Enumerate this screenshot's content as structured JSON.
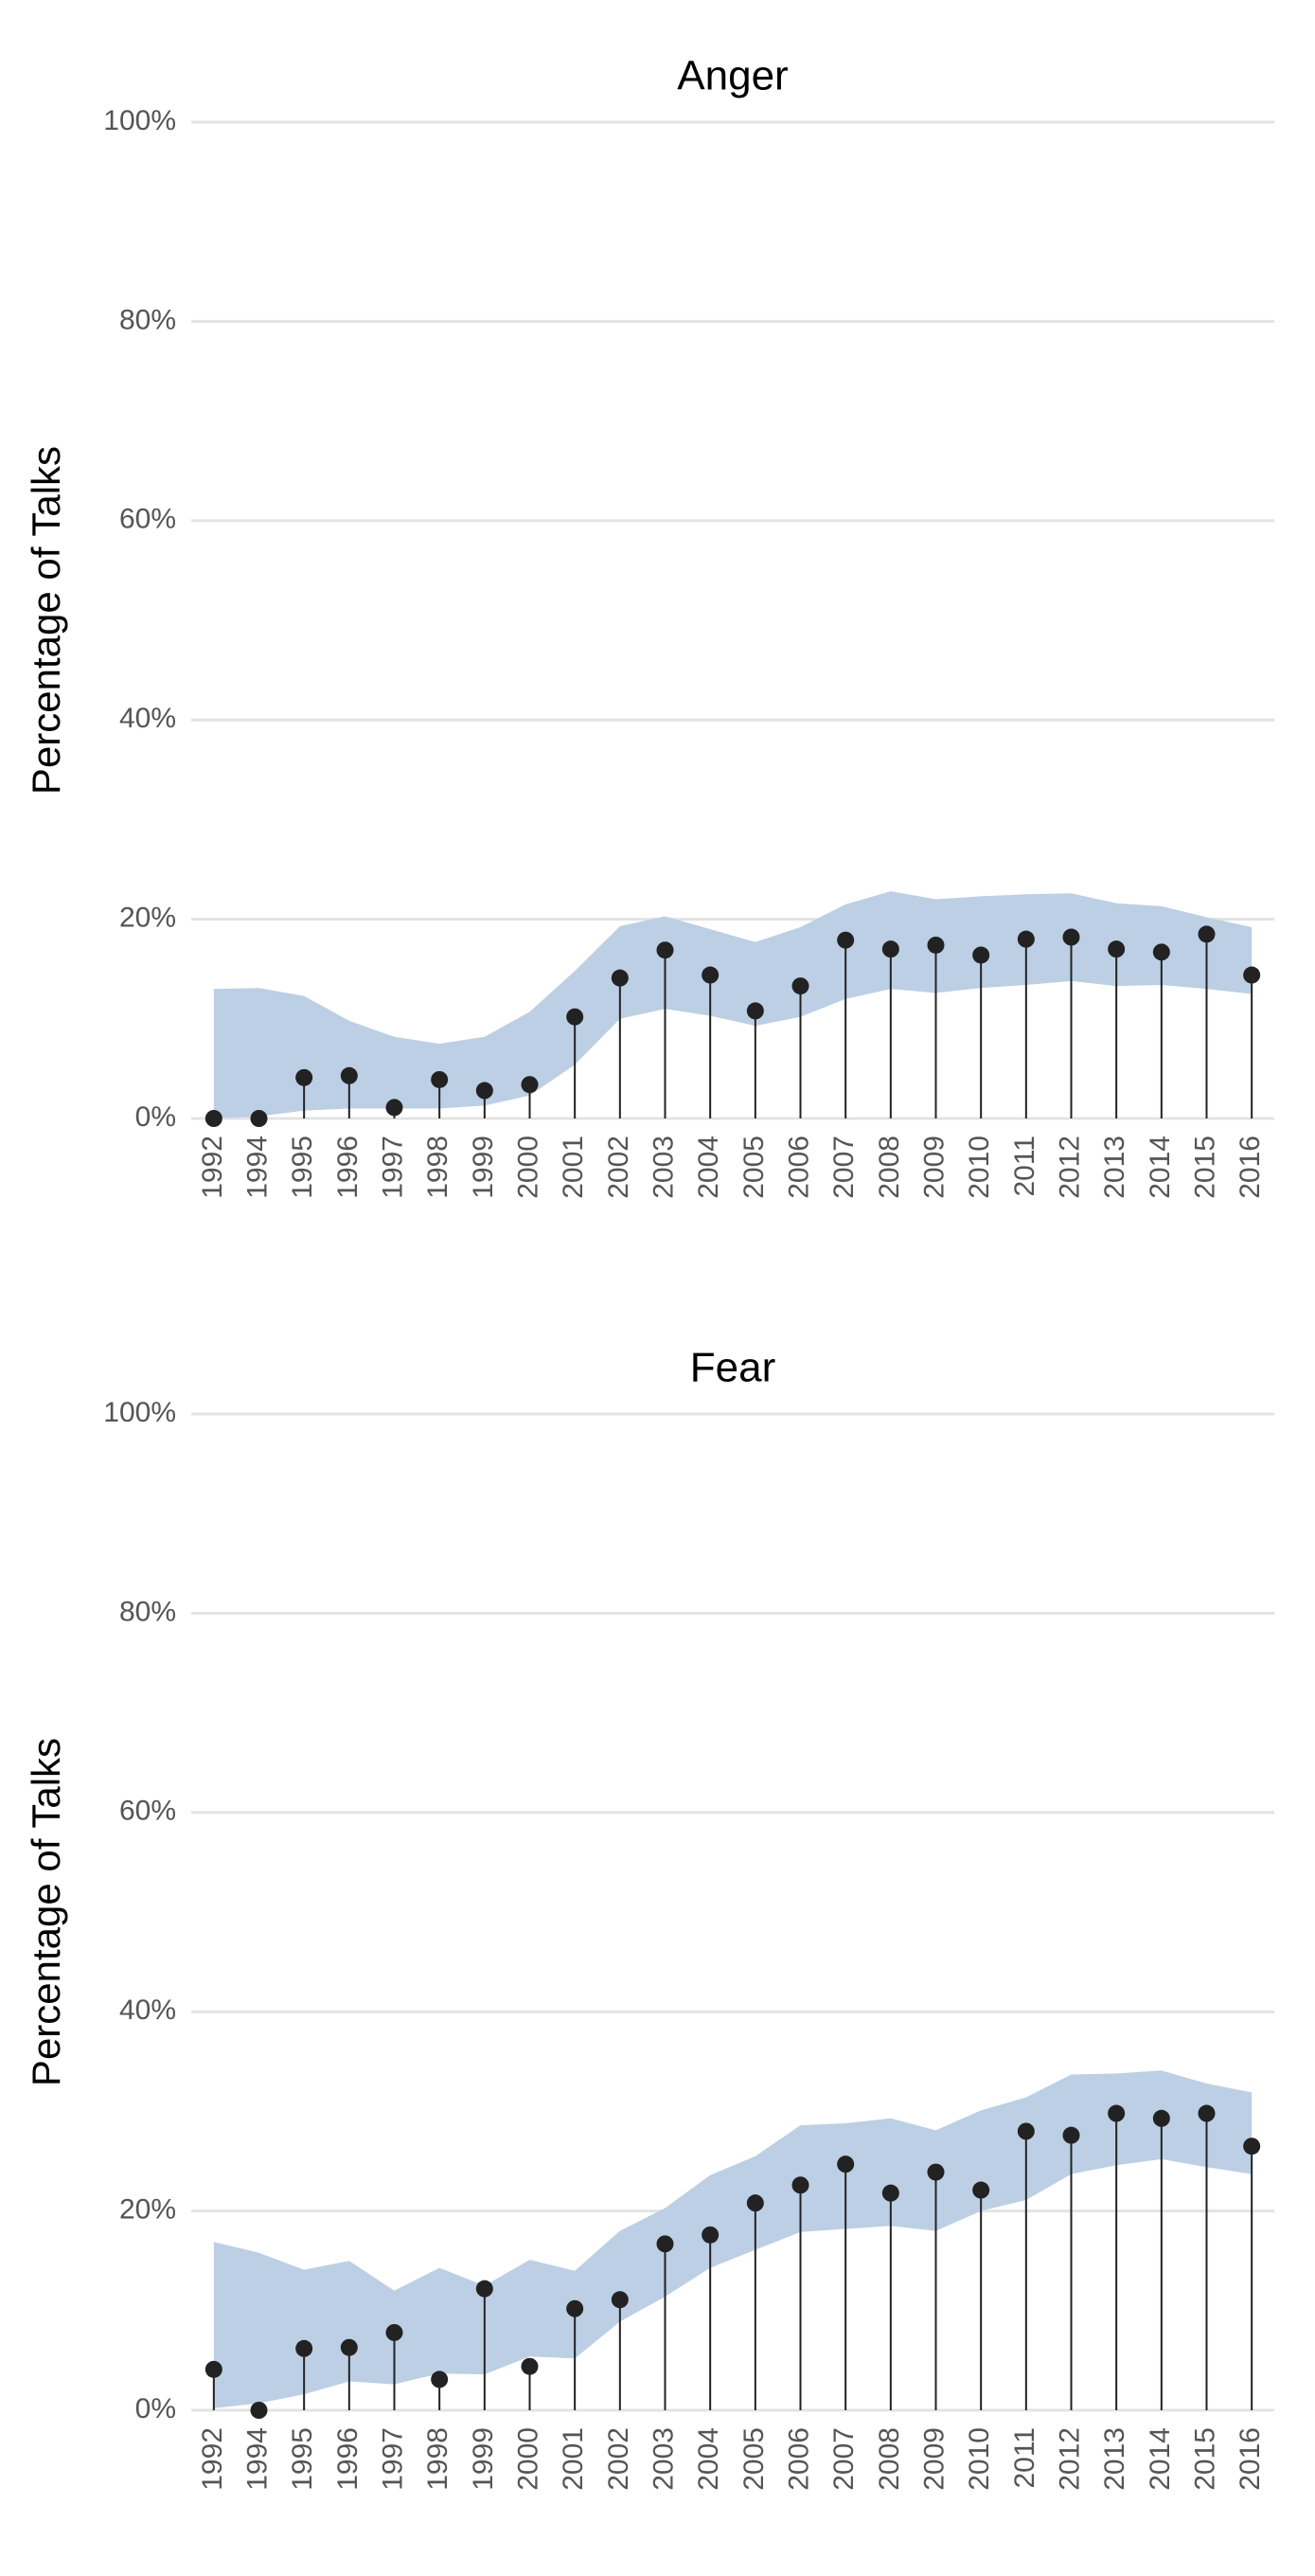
{
  "chart_data": [
    {
      "type": "lollipop-band",
      "title": "Anger",
      "y_label": "Percentage of Talks",
      "categories": [
        "1992",
        "1994",
        "1995",
        "1996",
        "1997",
        "1998",
        "1999",
        "2000",
        "2001",
        "2002",
        "2003",
        "2004",
        "2005",
        "2006",
        "2007",
        "2008",
        "2009",
        "2010",
        "2011",
        "2012",
        "2013",
        "2014",
        "2015",
        "2016"
      ],
      "values": [
        0,
        0,
        4.1,
        4.3,
        1.1,
        3.9,
        2.8,
        3.4,
        10.2,
        14.1,
        16.9,
        14.4,
        10.8,
        13.3,
        17.9,
        17.0,
        17.4,
        16.4,
        18.0,
        18.2,
        17.0,
        16.7,
        18.5,
        14.4
      ],
      "band_lower": [
        0,
        0.2,
        0.8,
        1.0,
        1.0,
        1.0,
        1.3,
        2.3,
        5.4,
        10.0,
        11.0,
        10.3,
        9.3,
        10.2,
        12.0,
        13.0,
        12.6,
        13.1,
        13.4,
        13.8,
        13.3,
        13.4,
        13.0,
        12.5
      ],
      "band_upper": [
        13.0,
        13.1,
        12.3,
        9.8,
        8.2,
        7.5,
        8.2,
        10.7,
        14.8,
        19.3,
        20.3,
        19.0,
        17.7,
        19.2,
        21.5,
        22.8,
        22.0,
        22.3,
        22.5,
        22.6,
        21.6,
        21.3,
        20.2,
        19.2
      ],
      "color": "#222222",
      "band_color": "#bccfe4",
      "ylim": [
        0,
        100
      ],
      "yticks": [
        {
          "value": 0,
          "label": "0%"
        },
        {
          "value": 20,
          "label": "20%"
        },
        {
          "value": 40,
          "label": "40%"
        },
        {
          "value": 60,
          "label": "60%"
        },
        {
          "value": 80,
          "label": "80%"
        },
        {
          "value": 100,
          "label": "100%"
        }
      ],
      "grid": true
    },
    {
      "type": "lollipop-band",
      "title": "Fear",
      "y_label": "Percentage of Talks",
      "categories": [
        "1992",
        "1994",
        "1995",
        "1996",
        "1997",
        "1998",
        "1999",
        "2000",
        "2001",
        "2002",
        "2003",
        "2004",
        "2005",
        "2006",
        "2007",
        "2008",
        "2009",
        "2010",
        "2011",
        "2012",
        "2013",
        "2014",
        "2015",
        "2016"
      ],
      "values": [
        4.1,
        0,
        6.2,
        6.3,
        7.8,
        3.1,
        12.2,
        4.4,
        10.2,
        11.1,
        16.7,
        17.6,
        20.8,
        22.6,
        24.7,
        21.8,
        23.9,
        22.1,
        28.0,
        27.6,
        29.8,
        29.3,
        29.8,
        26.5
      ],
      "band_lower": [
        0.2,
        0.7,
        1.6,
        2.9,
        2.6,
        3.7,
        3.6,
        5.4,
        5.2,
        8.9,
        11.4,
        14.3,
        16.1,
        17.9,
        18.2,
        18.5,
        18.0,
        20.0,
        21.1,
        23.7,
        24.6,
        25.2,
        24.4,
        23.7
      ],
      "band_upper": [
        16.9,
        15.8,
        14.1,
        15.0,
        12.0,
        14.3,
        12.5,
        15.1,
        14.0,
        18.0,
        20.3,
        23.6,
        25.5,
        28.6,
        28.8,
        29.3,
        28.1,
        30.1,
        31.4,
        33.7,
        33.8,
        34.1,
        32.8,
        31.9
      ],
      "color": "#222222",
      "band_color": "#bccfe4",
      "ylim": [
        0,
        100
      ],
      "yticks": [
        {
          "value": 0,
          "label": "0%"
        },
        {
          "value": 20,
          "label": "20%"
        },
        {
          "value": 40,
          "label": "40%"
        },
        {
          "value": 60,
          "label": "60%"
        },
        {
          "value": 80,
          "label": "80%"
        },
        {
          "value": 100,
          "label": "100%"
        }
      ],
      "grid": true
    }
  ]
}
